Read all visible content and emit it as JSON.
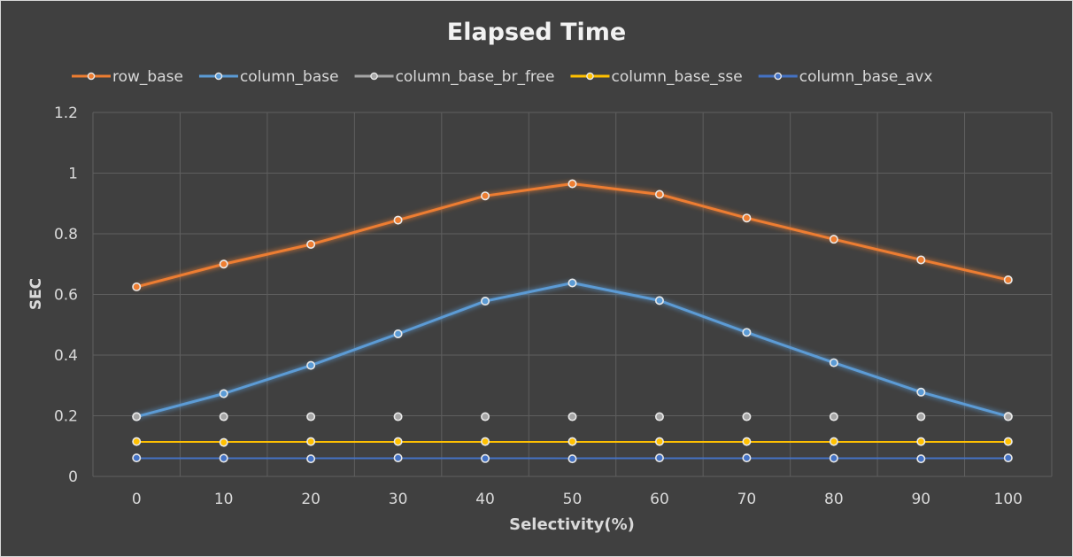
{
  "chart_data": {
    "type": "line",
    "title": "Elapsed Time",
    "xlabel": "Selectivity(%)",
    "ylabel": "SEC",
    "categories": [
      "0",
      "10",
      "20",
      "30",
      "40",
      "50",
      "60",
      "70",
      "80",
      "90",
      "100"
    ],
    "ylim": [
      0,
      1.2
    ],
    "yticks": [
      0,
      0.2,
      0.4,
      0.6,
      0.8,
      1,
      1.2
    ],
    "ytick_labels": [
      "0",
      "0.2",
      "0.4",
      "0.6",
      "0.8",
      "1",
      "1.2"
    ],
    "grid": true,
    "legend_position": "top",
    "series": [
      {
        "name": "row_base",
        "color": "#ed7d31",
        "values": [
          0.625,
          0.7,
          0.765,
          0.845,
          0.925,
          0.965,
          0.93,
          0.852,
          0.782,
          0.714,
          0.648
        ]
      },
      {
        "name": "column_base",
        "color": "#5b9bd5",
        "values": [
          0.197,
          0.273,
          0.366,
          0.47,
          0.578,
          0.638,
          0.58,
          0.475,
          0.375,
          0.278,
          0.198
        ]
      },
      {
        "name": "column_base_br_free",
        "color": "#a5a5a5",
        "values": [
          0.197,
          0.197,
          0.197,
          0.197,
          0.197,
          0.197,
          0.197,
          0.197,
          0.197,
          0.197,
          0.197
        ]
      },
      {
        "name": "column_base_sse",
        "color": "#ffc000",
        "values": [
          0.115,
          0.112,
          0.115,
          0.115,
          0.115,
          0.115,
          0.115,
          0.115,
          0.115,
          0.115,
          0.115
        ]
      },
      {
        "name": "column_base_avx",
        "color": "#4472c4",
        "values": [
          0.061,
          0.06,
          0.058,
          0.061,
          0.059,
          0.058,
          0.061,
          0.061,
          0.06,
          0.058,
          0.061
        ]
      }
    ]
  }
}
